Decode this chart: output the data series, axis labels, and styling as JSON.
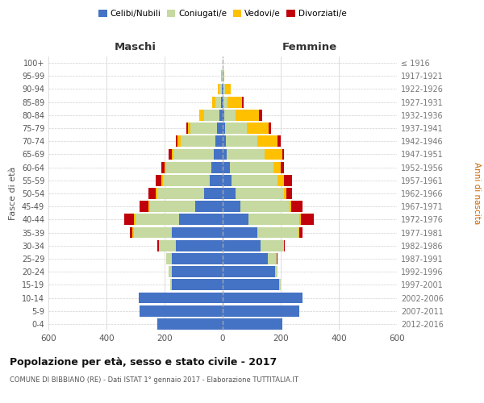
{
  "age_groups": [
    "0-4",
    "5-9",
    "10-14",
    "15-19",
    "20-24",
    "25-29",
    "30-34",
    "35-39",
    "40-44",
    "45-49",
    "50-54",
    "55-59",
    "60-64",
    "65-69",
    "70-74",
    "75-79",
    "80-84",
    "85-89",
    "90-94",
    "95-99",
    "100+"
  ],
  "birth_years": [
    "2012-2016",
    "2007-2011",
    "2002-2006",
    "1997-2001",
    "1992-1996",
    "1987-1991",
    "1982-1986",
    "1977-1981",
    "1972-1976",
    "1967-1971",
    "1962-1966",
    "1957-1961",
    "1952-1956",
    "1947-1951",
    "1942-1946",
    "1937-1941",
    "1932-1936",
    "1927-1931",
    "1922-1926",
    "1917-1921",
    "≤ 1916"
  ],
  "maschi": {
    "celibi": [
      225,
      285,
      290,
      175,
      175,
      175,
      160,
      175,
      150,
      95,
      65,
      45,
      40,
      30,
      25,
      20,
      10,
      5,
      3,
      1,
      0
    ],
    "coniugati": [
      0,
      0,
      0,
      5,
      10,
      20,
      60,
      130,
      150,
      155,
      160,
      160,
      155,
      140,
      120,
      90,
      55,
      20,
      8,
      2,
      0
    ],
    "vedovi": [
      0,
      0,
      0,
      0,
      0,
      0,
      0,
      5,
      5,
      5,
      5,
      5,
      5,
      5,
      10,
      10,
      15,
      10,
      5,
      2,
      0
    ],
    "divorziati": [
      0,
      0,
      0,
      0,
      0,
      0,
      5,
      10,
      35,
      30,
      25,
      20,
      10,
      10,
      5,
      5,
      0,
      0,
      0,
      0,
      0
    ]
  },
  "femmine": {
    "nubili": [
      205,
      265,
      275,
      195,
      180,
      155,
      130,
      120,
      90,
      60,
      45,
      30,
      25,
      15,
      10,
      8,
      5,
      3,
      2,
      1,
      0
    ],
    "coniugate": [
      0,
      0,
      0,
      5,
      10,
      30,
      80,
      140,
      175,
      170,
      165,
      160,
      150,
      130,
      110,
      75,
      40,
      15,
      5,
      1,
      0
    ],
    "vedove": [
      0,
      0,
      0,
      0,
      0,
      0,
      0,
      5,
      5,
      5,
      10,
      20,
      25,
      60,
      70,
      75,
      80,
      50,
      20,
      3,
      1
    ],
    "divorziate": [
      0,
      0,
      0,
      0,
      0,
      5,
      5,
      10,
      45,
      40,
      20,
      30,
      10,
      5,
      10,
      10,
      10,
      5,
      0,
      0,
      0
    ]
  },
  "colors": {
    "celibi": "#4472c4",
    "coniugati": "#c5d9a0",
    "vedovi": "#ffc000",
    "divorziati": "#c0000b"
  },
  "xlim": [
    -600,
    600
  ],
  "xticks": [
    -600,
    -400,
    -200,
    0,
    200,
    400,
    600
  ],
  "xticklabels": [
    "600",
    "400",
    "200",
    "0",
    "200",
    "400",
    "600"
  ],
  "title": "Popolazione per età, sesso e stato civile - 2017",
  "subtitle": "COMUNE DI BIBBIANO (RE) - Dati ISTAT 1° gennaio 2017 - Elaborazione TUTTITALIA.IT",
  "ylabel_left": "Fasce di età",
  "ylabel_right": "Anni di nascita",
  "label_maschi": "Maschi",
  "label_femmine": "Femmine",
  "legend_labels": [
    "Celibi/Nubili",
    "Coniugati/e",
    "Vedovi/e",
    "Divorziati/e"
  ],
  "bg_color": "#ffffff",
  "grid_color": "#d0d0d0"
}
